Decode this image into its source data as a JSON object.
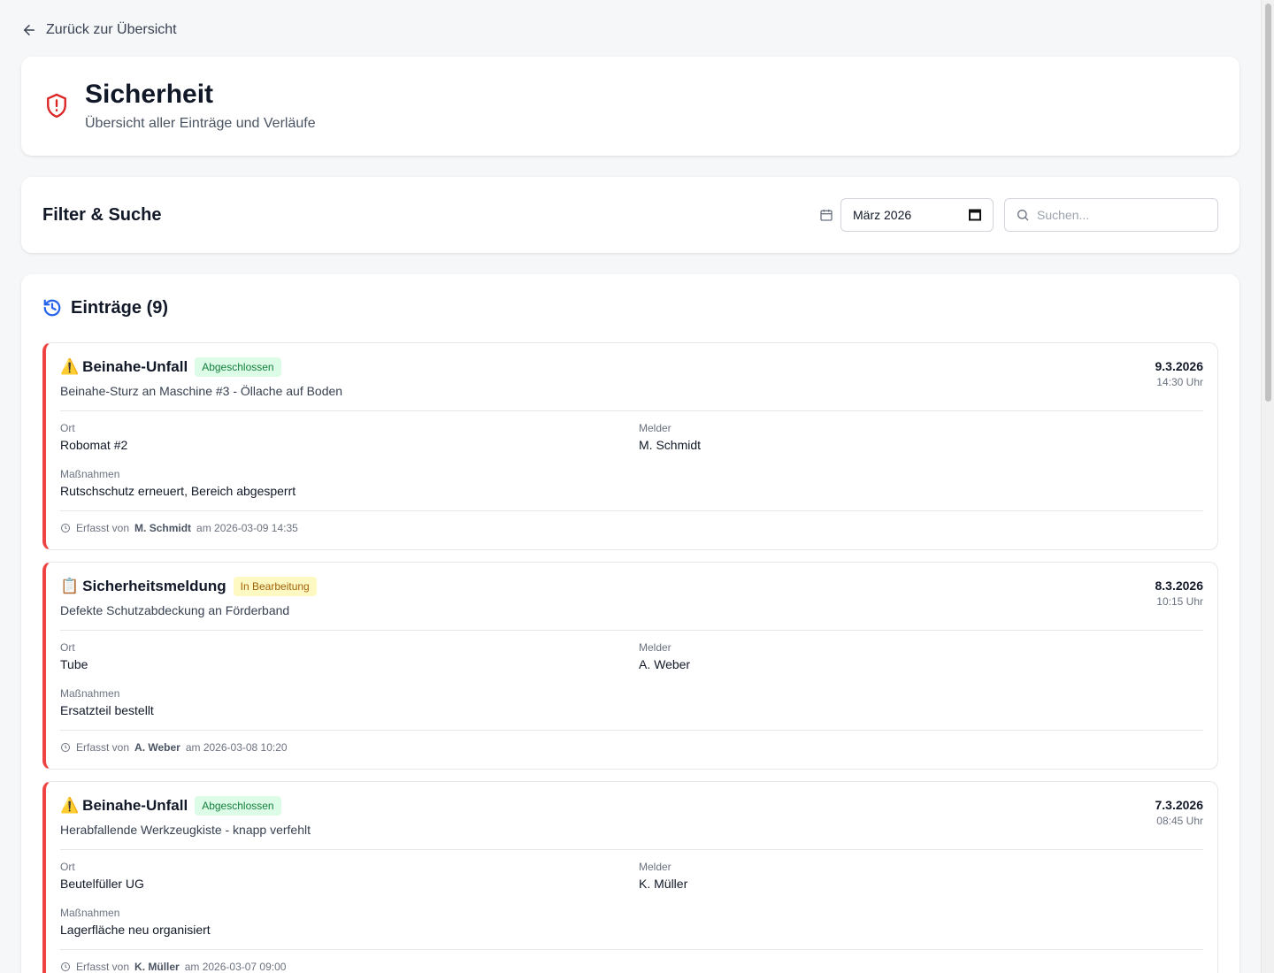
{
  "nav": {
    "back_label": "Zurück zur Übersicht"
  },
  "header": {
    "title": "Sicherheit",
    "subtitle": "Übersicht aller Einträge und Verläufe",
    "icon": "shield-alert-icon",
    "icon_color": "#dc2626"
  },
  "filter": {
    "title": "Filter & Suche",
    "month_value": "März 2026",
    "search_placeholder": "Suchen..."
  },
  "entries_section": {
    "title": "Einträge (9)",
    "accent": "#2563eb"
  },
  "entries": [
    {
      "icon": "⚠️",
      "type": "Beinahe-Unfall",
      "status": "Abgeschlossen",
      "status_color": "green",
      "description": "Beinahe-Sturz an Maschine #3 - Öllache auf Boden",
      "date": "9.3.2026",
      "time": "14:30 Uhr",
      "ort_label": "Ort",
      "ort": "Robomat #2",
      "melder_label": "Melder",
      "melder": "M. Schmidt",
      "massnahmen_label": "Maßnahmen",
      "massnahmen": "Rutschschutz erneuert, Bereich abgesperrt",
      "erfasst_prefix": "Erfasst von",
      "erfasst_by": "M. Schmidt",
      "erfasst_at": "am 2026-03-09 14:35"
    },
    {
      "icon": "📋",
      "type": "Sicherheitsmeldung",
      "status": "In Bearbeitung",
      "status_color": "yellow",
      "description": "Defekte Schutzabdeckung an Förderband",
      "date": "8.3.2026",
      "time": "10:15 Uhr",
      "ort_label": "Ort",
      "ort": "Tube",
      "melder_label": "Melder",
      "melder": "A. Weber",
      "massnahmen_label": "Maßnahmen",
      "massnahmen": "Ersatzteil bestellt",
      "erfasst_prefix": "Erfasst von",
      "erfasst_by": "A. Weber",
      "erfasst_at": "am 2026-03-08 10:20"
    },
    {
      "icon": "⚠️",
      "type": "Beinahe-Unfall",
      "status": "Abgeschlossen",
      "status_color": "green",
      "description": "Herabfallende Werkzeugkiste - knapp verfehlt",
      "date": "7.3.2026",
      "time": "08:45 Uhr",
      "ort_label": "Ort",
      "ort": "Beutelfüller UG",
      "melder_label": "Melder",
      "melder": "K. Müller",
      "massnahmen_label": "Maßnahmen",
      "massnahmen": "Lagerfläche neu organisiert",
      "erfasst_prefix": "Erfasst von",
      "erfasst_by": "K. Müller",
      "erfasst_at": "am 2026-03-07 09:00"
    }
  ]
}
